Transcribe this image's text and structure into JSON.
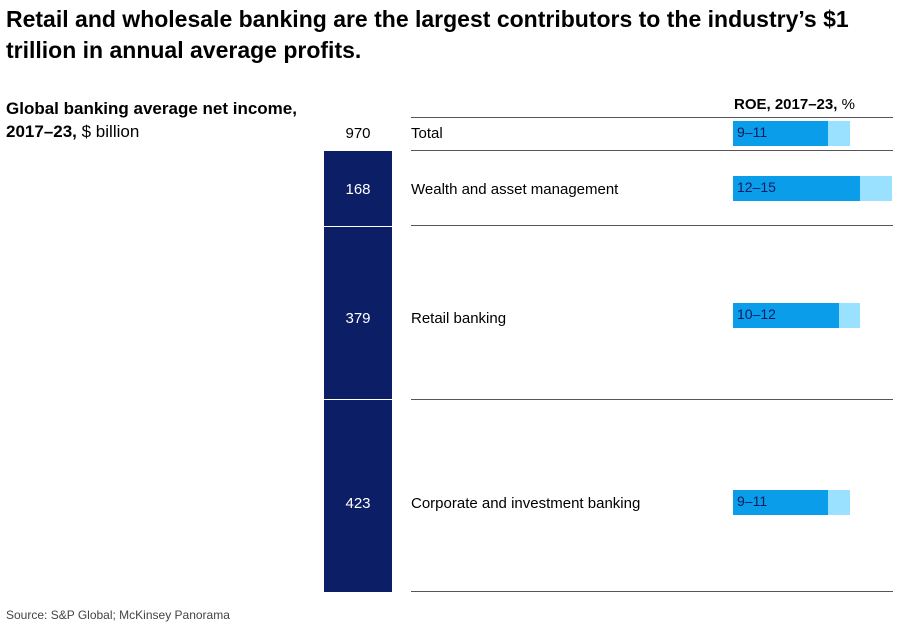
{
  "title": "Retail and wholesale banking are the largest contributors to the industry’s $1 trillion in annual average profits.",
  "subtitle_bold": "Global banking average net income, 2017–23,",
  "subtitle_unit": " $ billion",
  "roe_header_bold": "ROE, 2017–23,",
  "roe_header_unit": " %",
  "total": {
    "label": "Total",
    "value": "970",
    "roe": "9–11",
    "roe_low": 9,
    "roe_high": 11
  },
  "segments": [
    {
      "label": "Wealth and asset management",
      "value": "168",
      "roe": "12–15",
      "roe_low": 12,
      "roe_high": 15
    },
    {
      "label": "Retail banking",
      "value": "379",
      "roe": "10–12",
      "roe_low": 10,
      "roe_high": 12
    },
    {
      "label": "Corporate and investment banking",
      "value": "423",
      "roe": "9–11",
      "roe_low": 9,
      "roe_high": 11
    }
  ],
  "source": "Source: S&P Global; McKinsey Panorama",
  "colors": {
    "stack": "#0c1e66",
    "roe_dark": "#0a9de9",
    "roe_light": "#99e1ff"
  },
  "chart_data": {
    "type": "bar",
    "title": "Retail and wholesale banking are the largest contributors to the industry’s $1 trillion in annual average profits.",
    "ylabel": "Global banking average net income, 2017–23, $ billion",
    "categories": [
      "Wealth and asset management",
      "Retail banking",
      "Corporate and investment banking"
    ],
    "series": [
      {
        "name": "Global banking average net income, 2017–23, $ billion",
        "values": [
          168,
          379,
          423
        ]
      }
    ],
    "total": 970,
    "roe_range_percent": {
      "Total": [
        9,
        11
      ],
      "Wealth and asset management": [
        12,
        15
      ],
      "Retail banking": [
        10,
        12
      ],
      "Corporate and investment banking": [
        9,
        11
      ]
    }
  }
}
